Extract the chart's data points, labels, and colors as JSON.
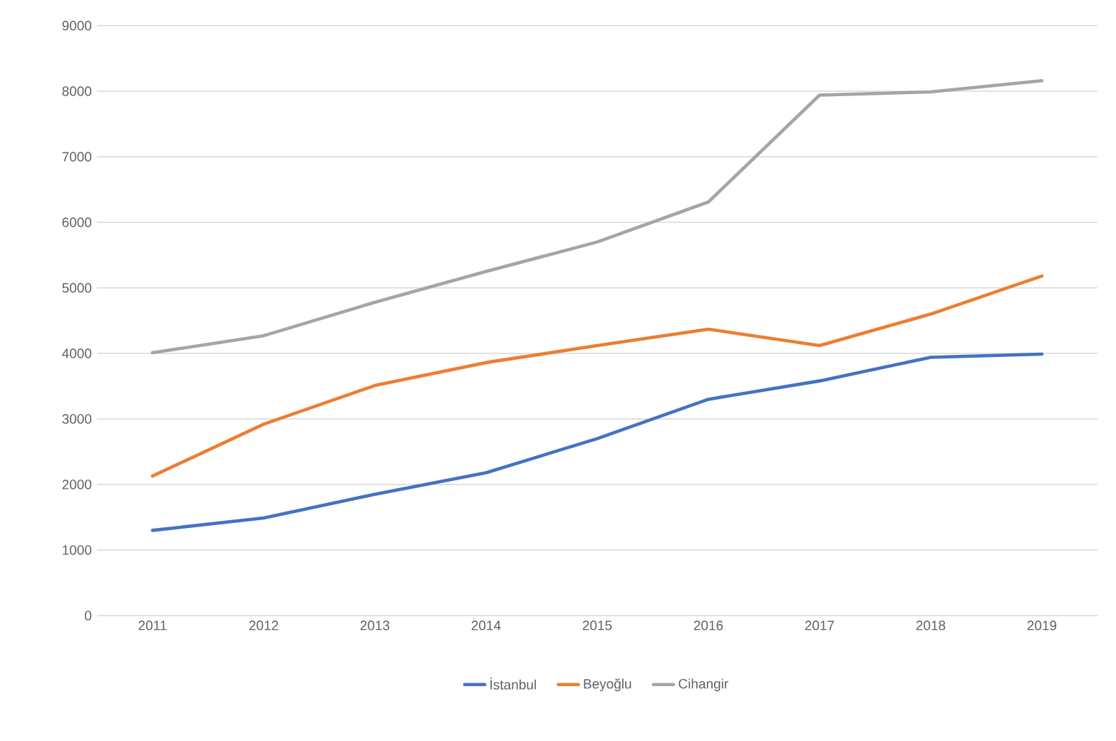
{
  "chart_data": {
    "type": "line",
    "categories": [
      "2011",
      "2012",
      "2013",
      "2014",
      "2015",
      "2016",
      "2017",
      "2018",
      "2019"
    ],
    "series": [
      {
        "name": "İstanbul",
        "color": "#4472c4",
        "values": [
          1300,
          1490,
          1850,
          2180,
          2700,
          3300,
          3580,
          3940,
          3990
        ]
      },
      {
        "name": "Beyoğlu",
        "color": "#ed7d31",
        "values": [
          2130,
          2920,
          3510,
          3860,
          4120,
          4370,
          4120,
          4600,
          5180
        ]
      },
      {
        "name": "Cihangir",
        "color": "#a5a5a5",
        "values": [
          4010,
          4270,
          4780,
          5250,
          5700,
          6310,
          7940,
          7990,
          8160
        ]
      }
    ],
    "ylim": [
      0,
      9000
    ],
    "yticks": [
      0,
      1000,
      2000,
      3000,
      4000,
      5000,
      6000,
      7000,
      8000,
      9000
    ],
    "grid": "y",
    "legend": "bottom",
    "marker": "none",
    "line_style": "solid"
  }
}
